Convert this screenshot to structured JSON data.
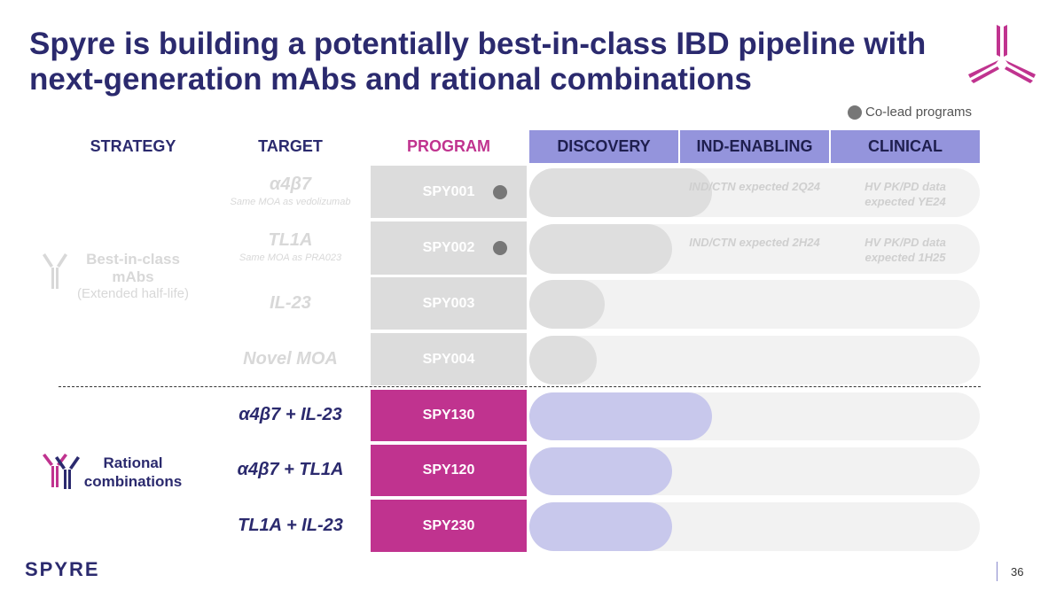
{
  "title": "Spyre is building a potentially best-in-class IBD pipeline with next-generation mAbs and rational combinations",
  "legend": {
    "label": "Co-lead programs",
    "color": "#777777"
  },
  "headers": {
    "strategy": "STRATEGY",
    "target": "TARGET",
    "program": "PROGRAM",
    "stages": [
      "DISCOVERY",
      "IND-ENABLING",
      "CLINICAL"
    ]
  },
  "colors": {
    "navy": "#2b2a6e",
    "magenta": "#c0338f",
    "stage_header": "#9494dc",
    "gray_cell": "#dcdcdc",
    "lavender": "#c8c8ec"
  },
  "strategies": [
    {
      "label": "Best-in-class mAbs",
      "sub": "(Extended half-life)",
      "icon": "antibody-icon"
    },
    {
      "label": "Rational combinations",
      "icon": "bispecific-antibody-icon"
    }
  ],
  "rows": [
    {
      "target": "α4β7",
      "target_sub": "Same MOA as vedolizumab",
      "program": "SPY001",
      "co_lead": true,
      "progress": 0.405,
      "milestones": [
        "IND/CTN expected 2Q24",
        "HV PK/PD data expected YE24"
      ]
    },
    {
      "target": "TL1A",
      "target_sub": "Same MOA as PRA023",
      "program": "SPY002",
      "co_lead": true,
      "progress": 0.317,
      "milestones": [
        "IND/CTN expected 2H24",
        "HV PK/PD data expected 1H25"
      ]
    },
    {
      "target": "IL-23",
      "program": "SPY003",
      "co_lead": false,
      "progress": 0.167
    },
    {
      "target": "Novel MOA",
      "program": "SPY004",
      "co_lead": false,
      "progress": 0.15
    },
    {
      "target": "α4β7 + IL-23",
      "program": "SPY130",
      "co_lead": false,
      "progress": 0.405
    },
    {
      "target": "α4β7 + TL1A",
      "program": "SPY120",
      "co_lead": false,
      "progress": 0.317
    },
    {
      "target": "TL1A + IL-23",
      "program": "SPY230",
      "co_lead": false,
      "progress": 0.317
    }
  ],
  "footer": {
    "brand": "SPYRE",
    "page": "36"
  }
}
